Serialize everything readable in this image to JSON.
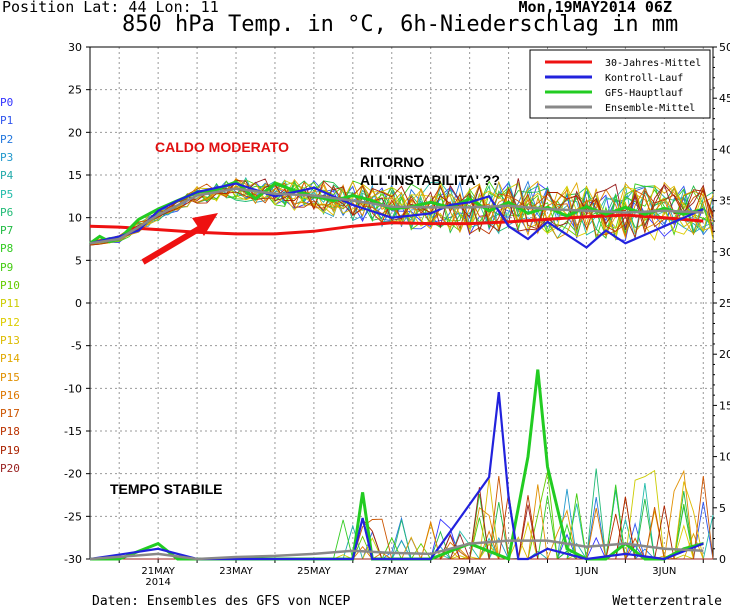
{
  "header": {
    "position": "Position   Lat: 44  Lon: 11",
    "date": "Mon,19MAY2014 06Z",
    "title": "850 hPa Temp. in °C, 6h-Niederschlag in mm"
  },
  "footer": {
    "source": "Daten: Ensembles des GFS von NCEP",
    "brand": "Wetterzentrale"
  },
  "members": [
    {
      "label": "P0",
      "color": "#3333ff"
    },
    {
      "label": "P1",
      "color": "#2f55ee"
    },
    {
      "label": "P2",
      "color": "#2277dd"
    },
    {
      "label": "P3",
      "color": "#2299cc"
    },
    {
      "label": "P4",
      "color": "#22aaaa"
    },
    {
      "label": "P5",
      "color": "#22bbaa"
    },
    {
      "label": "P6",
      "color": "#22bb77"
    },
    {
      "label": "P7",
      "color": "#22bb44"
    },
    {
      "label": "P8",
      "color": "#33cc22"
    },
    {
      "label": "P9",
      "color": "#44cc11"
    },
    {
      "label": "P10",
      "color": "#66cc00"
    },
    {
      "label": "P11",
      "color": "#cccc00"
    },
    {
      "label": "P12",
      "color": "#ddcc00"
    },
    {
      "label": "P13",
      "color": "#ddbb00"
    },
    {
      "label": "P14",
      "color": "#e0a800"
    },
    {
      "label": "P15",
      "color": "#e09000"
    },
    {
      "label": "P16",
      "color": "#dd7700"
    },
    {
      "label": "P17",
      "color": "#cc5500"
    },
    {
      "label": "P18",
      "color": "#bb3300"
    },
    {
      "label": "P19",
      "color": "#aa2200"
    },
    {
      "label": "P20",
      "color": "#992222"
    }
  ],
  "annotations": {
    "warm": "CALDO MODERATO",
    "return_line1": "RITORNO",
    "return_line2": "ALL'INSTABILITA' ??",
    "stable": "TEMPO STABILE"
  },
  "chart_data": {
    "type": "line",
    "y_left": {
      "min": -30,
      "max": 30,
      "step": 5,
      "unit": "°C"
    },
    "y_right": {
      "min": 0,
      "max": 50,
      "step": 5,
      "unit": "mm"
    },
    "x": {
      "start_day": 19,
      "start_hour": 6,
      "days": 16
    },
    "x_tick_labels": [
      {
        "day": 21,
        "label": "21MAY",
        "sub": "2014"
      },
      {
        "day": 23,
        "label": "23MAY"
      },
      {
        "day": 25,
        "label": "25MAY"
      },
      {
        "day": 27,
        "label": "27MAY"
      },
      {
        "day": 29,
        "label": "29MAY"
      },
      {
        "day": 32,
        "label": "1JUN"
      },
      {
        "day": 34,
        "label": "3JUN"
      }
    ],
    "grid": true,
    "legend": {
      "position": "top-right",
      "entries": [
        {
          "label": "30-Jahres-Mittel",
          "color": "#ee1111"
        },
        {
          "label": "Kontroll-Lauf",
          "color": "#2222dd"
        },
        {
          "label": "GFS-Hauptlauf",
          "color": "#22cc22"
        },
        {
          "label": "Ensemble-Mittel",
          "color": "#888888"
        }
      ]
    },
    "series": [
      {
        "name": "30-Jahres-Mittel",
        "color": "#ee1111",
        "days": [
          19.25,
          20,
          21,
          22,
          23,
          24,
          25,
          26,
          27,
          28,
          29,
          30,
          31,
          32,
          33,
          34,
          35
        ],
        "temp": [
          9,
          8.9,
          8.6,
          8.3,
          8.1,
          8.1,
          8.4,
          9,
          9.4,
          9.3,
          9.3,
          9.5,
          9.8,
          10.1,
          10.3,
          10,
          9.6
        ]
      },
      {
        "name": "GFS-Hauptlauf",
        "color": "#22cc22",
        "days": [
          19.25,
          19.5,
          19.75,
          20,
          20.5,
          21,
          21.5,
          22,
          22.5,
          23,
          23.5,
          24,
          24.5,
          25,
          25.5,
          26,
          26.5,
          27,
          27.5,
          28,
          28.5,
          29,
          29.5,
          30,
          30.5,
          31,
          31.5,
          32,
          32.5,
          33,
          33.5,
          34,
          34.5,
          35
        ],
        "temp": [
          7,
          7.8,
          7.2,
          7.5,
          9.8,
          11,
          12,
          13,
          13.3,
          14.2,
          12.2,
          14,
          13.2,
          12.5,
          12,
          12.6,
          12,
          11,
          11.3,
          11.8,
          11.2,
          12.2,
          10.8,
          11.8,
          10.5,
          11.2,
          10.2,
          11.3,
          10.4,
          11.2,
          10.4,
          11.1,
          10.4,
          11
        ],
        "precip_days": [
          19.25,
          20,
          21,
          21.5,
          22,
          23,
          24,
          25,
          26,
          26.25,
          26.5,
          27,
          28,
          29,
          30,
          30.5,
          30.75,
          31,
          31.5,
          32,
          32.5,
          33,
          33.5,
          34,
          34.5,
          35
        ],
        "precip": [
          0,
          0,
          1.5,
          0,
          0,
          0,
          0,
          0,
          0,
          6.5,
          0,
          0,
          0,
          1.5,
          0,
          10,
          18.5,
          9,
          1,
          0,
          0,
          1.5,
          0,
          0,
          1,
          1.5
        ]
      },
      {
        "name": "Kontroll-Lauf",
        "color": "#2222dd",
        "days": [
          19.25,
          20,
          20.5,
          21,
          21.5,
          22,
          23,
          24,
          25,
          26,
          27,
          28,
          28.5,
          29,
          29.5,
          30,
          30.5,
          31,
          31.5,
          32,
          32.5,
          33,
          33.5,
          34,
          34.5,
          35
        ],
        "temp": [
          7,
          7.8,
          8.5,
          10.8,
          12,
          13,
          14,
          12.5,
          13.5,
          11.5,
          10,
          10.5,
          11.5,
          11.8,
          12.5,
          9,
          7.5,
          9.5,
          8,
          6.5,
          8.5,
          7,
          8,
          9,
          10,
          11
        ],
        "precip_days": [
          19.25,
          21,
          22,
          24,
          25,
          26,
          26.25,
          26.5,
          28,
          29.5,
          29.75,
          30,
          30.25,
          30.5,
          31,
          32,
          33,
          34,
          35
        ],
        "precip": [
          0,
          1,
          0,
          0,
          0,
          0,
          4,
          0,
          0,
          8,
          16.3,
          6,
          0,
          0,
          1,
          0,
          0.5,
          0,
          1.5
        ]
      },
      {
        "name": "Ensemble-Mittel",
        "color": "#888888",
        "days": [
          19.25,
          20,
          21,
          22,
          23,
          24,
          25,
          26,
          27,
          28,
          29,
          30,
          31,
          32,
          33,
          34,
          35
        ],
        "temp": [
          7,
          7.5,
          10.3,
          12.6,
          13.4,
          12.8,
          12.6,
          12,
          11.3,
          11.2,
          11.2,
          11.4,
          11,
          10.8,
          10.6,
          10.8,
          10.6
        ],
        "precip_days": [
          19.25,
          21,
          22,
          23,
          24,
          25,
          26,
          27,
          28,
          29,
          30,
          31,
          32,
          33,
          34,
          35
        ],
        "precip": [
          0,
          0.5,
          0,
          0.2,
          0.3,
          0.5,
          0.8,
          0.6,
          0.5,
          1.5,
          1.8,
          1.8,
          1.2,
          1.5,
          1,
          0.8
        ]
      }
    ]
  }
}
